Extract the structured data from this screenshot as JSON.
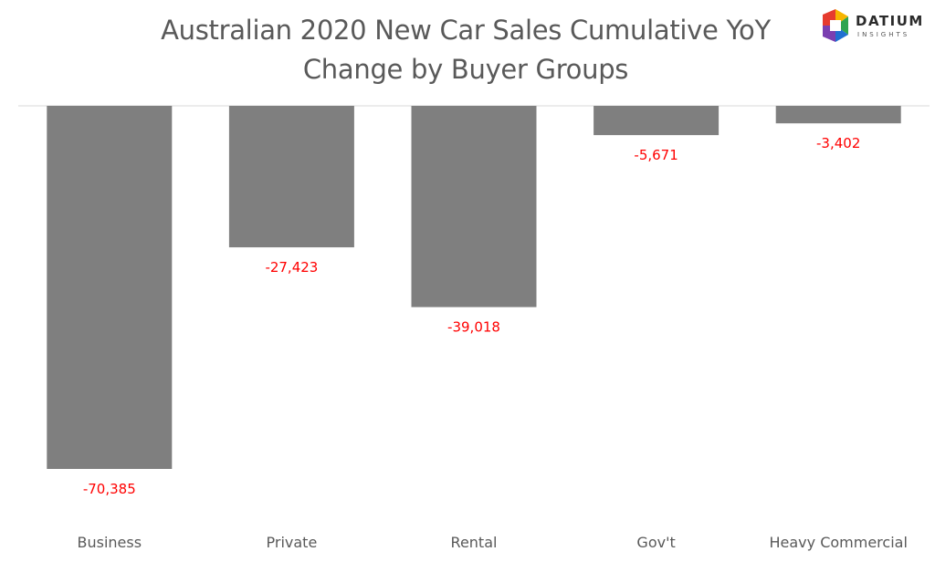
{
  "chart_data": {
    "type": "bar",
    "title_lines": [
      "Australian 2020 New Car Sales Cumulative YoY",
      "Change by Buyer Groups"
    ],
    "categories": [
      "Business",
      "Private",
      "Rental",
      "Gov't",
      "Heavy Commercial"
    ],
    "values": [
      -70385,
      -27423,
      -39018,
      -5671,
      -3402
    ],
    "value_labels": [
      "-70,385",
      "-27,423",
      "-39,018",
      "-5,671",
      "-3,402"
    ],
    "xlabel": "",
    "ylabel": "",
    "ylim": [
      -72000,
      0
    ],
    "grid": false,
    "legend": "none",
    "colors": {
      "bar": "#7f7f7f",
      "data_label": "#ff0000",
      "axis_line": "#d9d9d9",
      "title": "#595959"
    }
  },
  "logo": {
    "name": "DATIUM",
    "sub": "INSIGHTS"
  }
}
